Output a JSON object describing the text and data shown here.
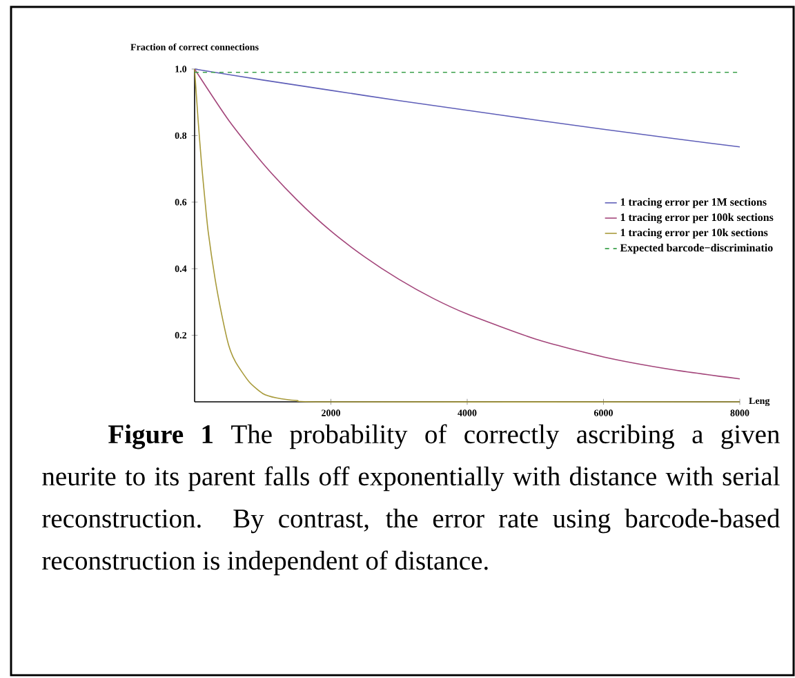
{
  "chart_data": {
    "type": "line",
    "ylabel": "Fraction of correct connections",
    "xlabel": "Leng",
    "xlim": [
      0,
      8000
    ],
    "xticks": [
      2000,
      4000,
      6000,
      8000
    ],
    "ylim": [
      0,
      1
    ],
    "yticks": [
      0.2,
      0.4,
      0.6,
      0.8,
      {
        "value": 1,
        "label": "1.0"
      }
    ],
    "legend": "right",
    "series": [
      {
        "name": "1 tracing error per 1M sections",
        "color": "#5e5eb8",
        "x": [
          0,
          1000,
          2000,
          3000,
          4000,
          5000,
          6000,
          7000,
          8000
        ],
        "values": [
          1.0,
          0.967,
          0.936,
          0.905,
          0.876,
          0.847,
          0.819,
          0.792,
          0.766
        ]
      },
      {
        "name": "1 tracing error per 100k sections",
        "color": "#a3457a",
        "x": [
          0,
          500,
          1000,
          1500,
          2000,
          2500,
          3000,
          3500,
          4000,
          5000,
          6000,
          7000,
          8000
        ],
        "values": [
          1.0,
          0.846,
          0.717,
          0.607,
          0.513,
          0.435,
          0.368,
          0.311,
          0.264,
          0.189,
          0.135,
          0.097,
          0.069
        ]
      },
      {
        "name": "1 tracing error per 10k sections",
        "color": "#a89a3a",
        "x": [
          0,
          50,
          100,
          150,
          200,
          300,
          400,
          500,
          600,
          800,
          1000,
          1200,
          1500,
          2000,
          8000
        ],
        "values": [
          1.0,
          0.85,
          0.72,
          0.61,
          0.51,
          0.37,
          0.26,
          0.17,
          0.12,
          0.06,
          0.025,
          0.012,
          0.004,
          0.0,
          0.0
        ]
      },
      {
        "name": "Expected barcode−discriminatio",
        "color": "#3aa04a",
        "line_style": "dashed",
        "x": [
          0,
          8000
        ],
        "values": [
          0.99,
          0.99
        ]
      }
    ],
    "annotations": [
      "**Figure 1** The probability of correctly ascribing a given neurite to its parent falls off exponentially with distance with serial reconstruction. By contrast, the error rate using barcode-based reconstruction is independent of distance."
    ]
  }
}
